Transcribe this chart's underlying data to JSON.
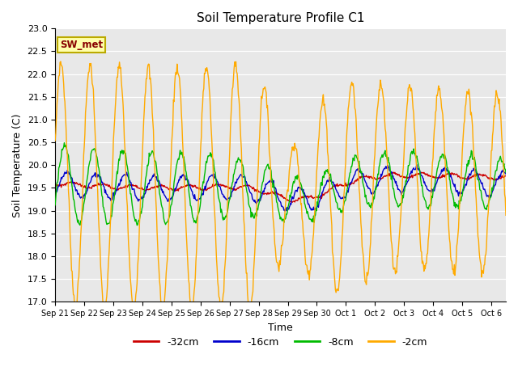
{
  "title": "Soil Temperature Profile C1",
  "xlabel": "Time",
  "ylabel": "Soil Temperature (C)",
  "ylim": [
    17.0,
    23.0
  ],
  "yticks": [
    17.0,
    17.5,
    18.0,
    18.5,
    19.0,
    19.5,
    20.0,
    20.5,
    21.0,
    21.5,
    22.0,
    22.5,
    23.0
  ],
  "colors": {
    "-32cm": "#cc0000",
    "-16cm": "#0000cc",
    "-8cm": "#00bb00",
    "-2cm": "#ffaa00"
  },
  "annotation_text": "SW_met",
  "annotation_bg": "#ffffaa",
  "annotation_border": "#bbaa00",
  "annotation_fg": "#880000",
  "n_days": 15.5,
  "date_labels": [
    "Sep 21",
    "Sep 22",
    "Sep 23",
    "Sep 24",
    "Sep 25",
    "Sep 26",
    "Sep 27",
    "Sep 28",
    "Sep 29",
    "Sep 30",
    "Oct 1",
    "Oct 2",
    "Oct 3",
    "Oct 4",
    "Oct 5",
    "Oct 6"
  ],
  "legend_labels": [
    "-32cm",
    "-16cm",
    "-8cm",
    "-2cm"
  ],
  "figsize": [
    6.4,
    4.8
  ],
  "dpi": 100
}
